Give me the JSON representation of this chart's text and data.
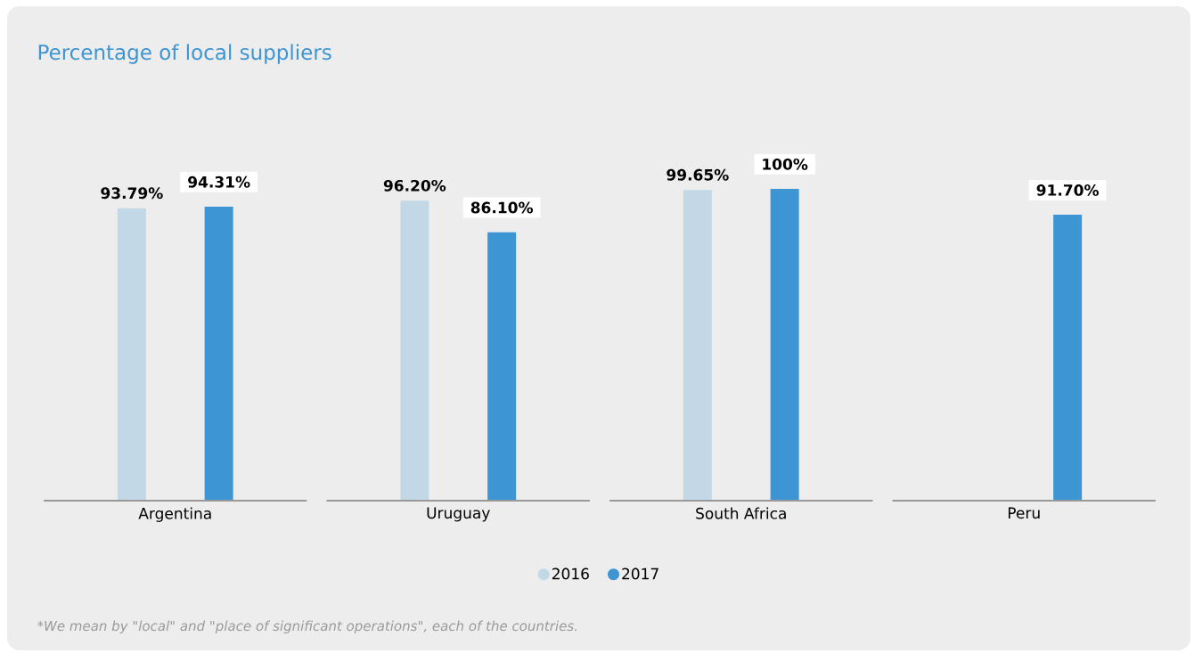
{
  "chart_data": {
    "type": "bar",
    "title": "Percentage of local suppliers",
    "categories": [
      "Argentina",
      "Uruguay",
      "South Africa",
      "Peru"
    ],
    "series": [
      {
        "name": "2016",
        "color": "#c2d8e6",
        "values": [
          93.79,
          96.2,
          99.65,
          null
        ],
        "value_labels": [
          "93.79%",
          "96.20%",
          "99.65%",
          null
        ]
      },
      {
        "name": "2017",
        "color": "#3d95d4",
        "values": [
          94.31,
          86.1,
          100,
          91.7
        ],
        "value_labels": [
          "94.31%",
          "86.10%",
          "100%",
          "91.70%"
        ]
      }
    ],
    "legend": "bottom",
    "annotations": [
      "*We mean by \"local\" and \"place of significant operations\", each of the countries."
    ]
  }
}
